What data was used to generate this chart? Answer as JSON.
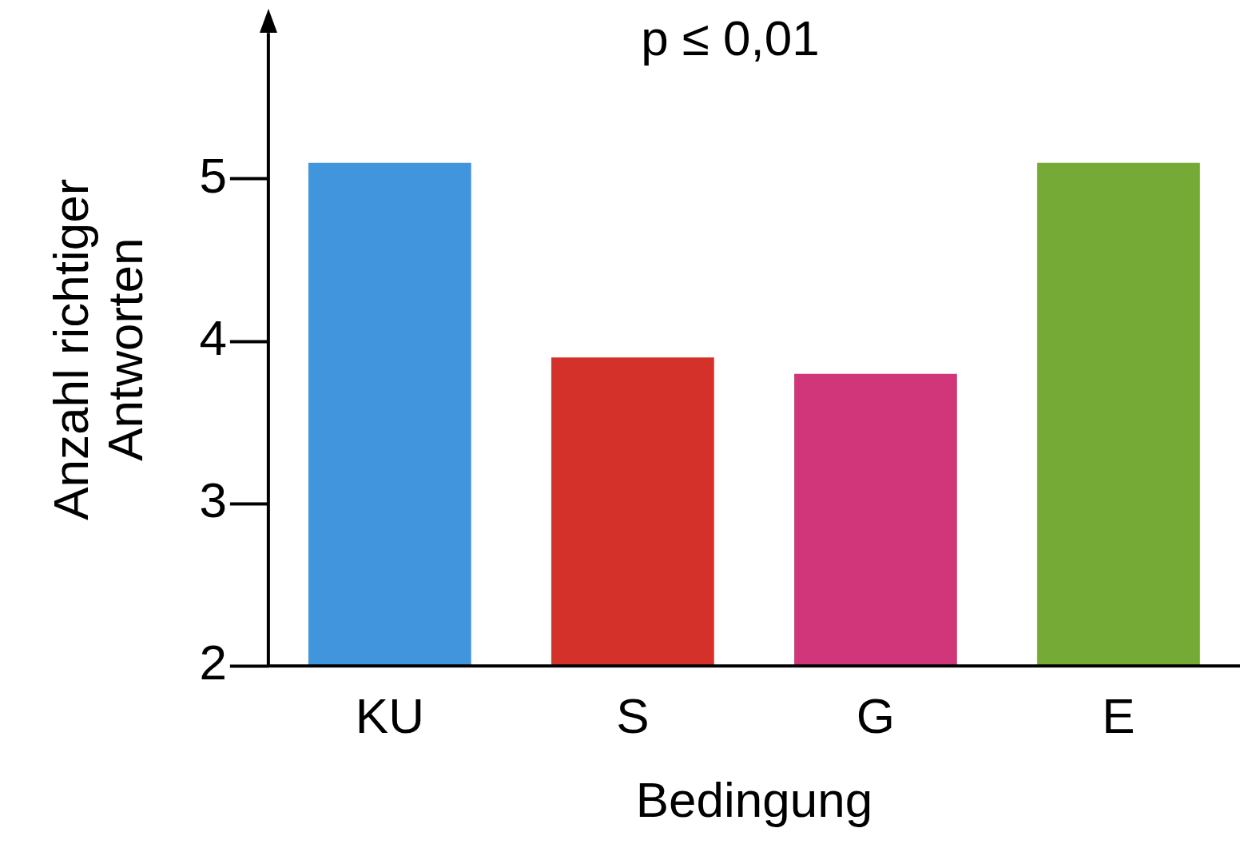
{
  "chart_data": {
    "type": "bar",
    "annotations": [
      "p ≤ 0,01"
    ],
    "xlabel": "Bedingung",
    "ylabel": "Anzahl richtiger\nAntworten",
    "categories": [
      "KU",
      "S",
      "G",
      "E"
    ],
    "values": [
      5.1,
      3.9,
      3.8,
      5.1
    ],
    "colors": [
      "#4095dc",
      "#d3312a",
      "#d1357a",
      "#76aa37"
    ],
    "ylim": [
      2,
      5.9
    ],
    "yticks": [
      2,
      3,
      4,
      5
    ],
    "grid": false,
    "legend": false
  }
}
